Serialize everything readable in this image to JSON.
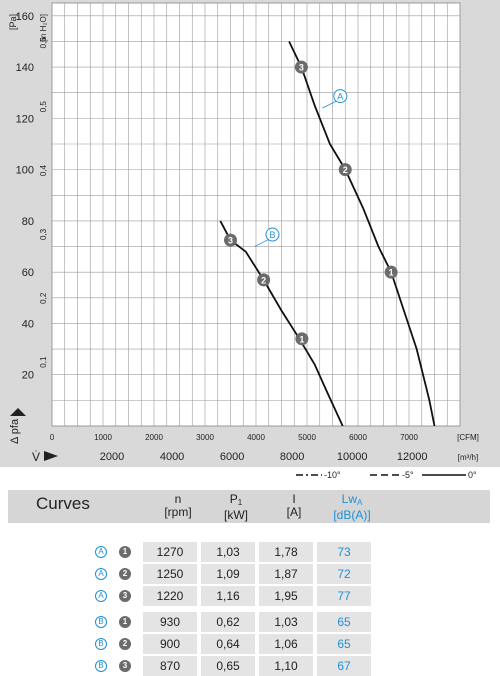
{
  "chart_data": {
    "type": "line",
    "y_unit_pa": "[Pa]",
    "y_unit_inh2o": "[in H₂O]",
    "x_unit_cfm": "[CFM]",
    "x_unit_m3h": "[m³/h]",
    "y_axis_label": "Δ pfa",
    "x_axis_label": "V̇",
    "pa_ticks": [
      "20",
      "40",
      "60",
      "80",
      "100",
      "120",
      "140",
      "160"
    ],
    "inh2o_ticks": [
      "0,1",
      "0,2",
      "0,3",
      "0,4",
      "0,5",
      "0,6"
    ],
    "cfm_ticks": [
      "0",
      "1000",
      "2000",
      "3000",
      "4000",
      "5000",
      "6000",
      "7000"
    ],
    "m3h_ticks": [
      "2000",
      "4000",
      "6000",
      "8000",
      "10000",
      "12000"
    ],
    "xlim_cfm": [
      0,
      8000
    ],
    "ylim_pa": [
      0,
      165
    ],
    "series": [
      {
        "name": "A",
        "points": [
          [
            4650,
            150
          ],
          [
            4890,
            140
          ],
          [
            5150,
            125
          ],
          [
            5450,
            110
          ],
          [
            5750,
            100
          ],
          [
            6100,
            85
          ],
          [
            6400,
            70
          ],
          [
            6650,
            60
          ],
          [
            6900,
            45
          ],
          [
            7150,
            30
          ],
          [
            7400,
            10
          ],
          [
            7500,
            0
          ]
        ],
        "labeled_at": [
          5300,
          124
        ]
      },
      {
        "name": "B",
        "points": [
          [
            3300,
            80
          ],
          [
            3500,
            72.5
          ],
          [
            3800,
            68
          ],
          [
            4150,
            57
          ],
          [
            4500,
            45
          ],
          [
            4850,
            34
          ],
          [
            5150,
            24
          ],
          [
            5400,
            13
          ],
          [
            5700,
            0
          ]
        ],
        "labeled_at": [
          3970,
          70
        ]
      }
    ],
    "operating_points": [
      {
        "label": "3",
        "x": 4890,
        "y": 140
      },
      {
        "label": "2",
        "x": 5750,
        "y": 100
      },
      {
        "label": "1",
        "x": 6650,
        "y": 60
      },
      {
        "label": "3",
        "x": 3500,
        "y": 72.5
      },
      {
        "label": "2",
        "x": 4150,
        "y": 57
      },
      {
        "label": "1",
        "x": 4900,
        "y": 34
      }
    ],
    "legend": [
      {
        "label": "-10°",
        "style": "dash-dot"
      },
      {
        "label": "-5°",
        "style": "dashed"
      },
      {
        "label": "0°",
        "style": "solid"
      }
    ],
    "grid": true
  },
  "table": {
    "title": "Curves",
    "headers": [
      {
        "name": "n",
        "unit": "[rpm]"
      },
      {
        "name": "P",
        "sub": "1",
        "unit": "[kW]"
      },
      {
        "name": "I",
        "unit": "[A]"
      },
      {
        "name": "Lw",
        "sub": "A",
        "unit": "[dB(A)]"
      }
    ],
    "rows": [
      {
        "curve": "A",
        "point": "1",
        "n": "1270",
        "p1": "1,03",
        "i": "1,78",
        "lwa": "73"
      },
      {
        "curve": "A",
        "point": "2",
        "n": "1250",
        "p1": "1,09",
        "i": "1,87",
        "lwa": "72"
      },
      {
        "curve": "A",
        "point": "3",
        "n": "1220",
        "p1": "1,16",
        "i": "1,95",
        "lwa": "77"
      },
      {
        "curve": "B",
        "point": "1",
        "n": "930",
        "p1": "0,62",
        "i": "1,03",
        "lwa": "65"
      },
      {
        "curve": "B",
        "point": "2",
        "n": "900",
        "p1": "0,64",
        "i": "1,06",
        "lwa": "65"
      },
      {
        "curve": "B",
        "point": "3",
        "n": "870",
        "p1": "0,65",
        "i": "1,10",
        "lwa": "67"
      }
    ]
  },
  "colors": {
    "accent": "#1f8fd6",
    "chart_bg": "#d9d9d9",
    "grid": "#9a9a9a",
    "curve": "#111111",
    "point_fill": "#6b6b6b"
  }
}
